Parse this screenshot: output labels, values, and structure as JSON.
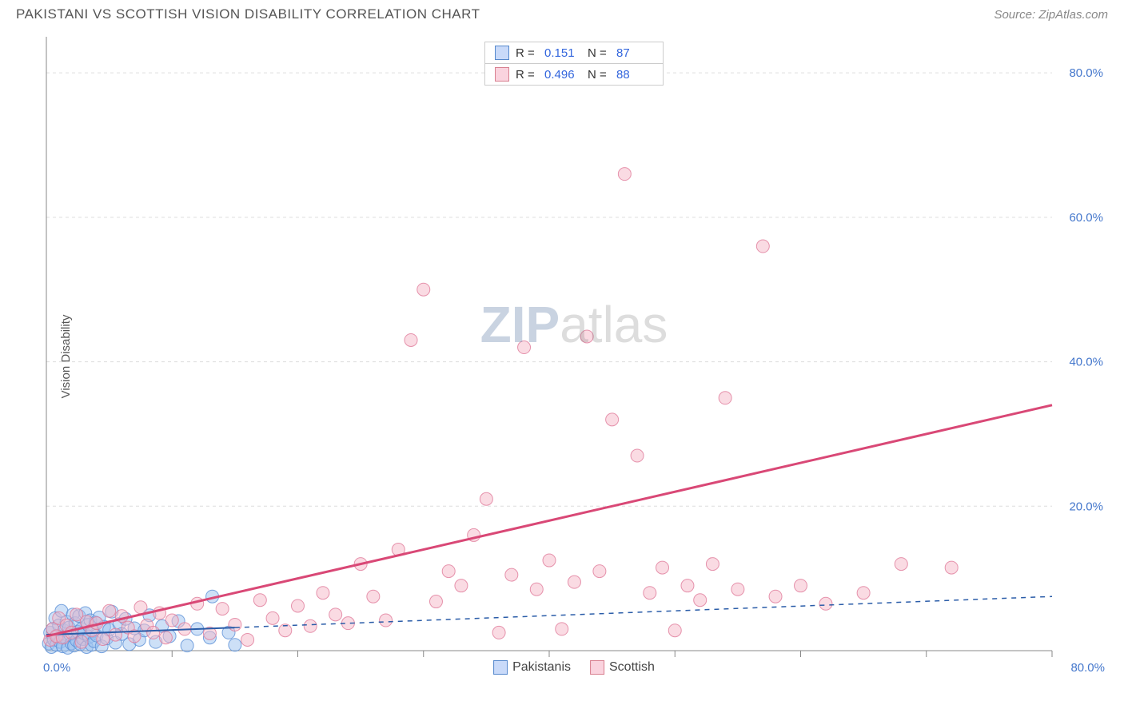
{
  "header": {
    "title": "PAKISTANI VS SCOTTISH VISION DISABILITY CORRELATION CHART",
    "source": "Source: ZipAtlas.com"
  },
  "chart": {
    "type": "scatter",
    "ylabel": "Vision Disability",
    "xlim": [
      0,
      80
    ],
    "ylim": [
      0,
      85
    ],
    "xtick_step": 10,
    "ytick_step": 20,
    "x_axis_label_min": "0.0%",
    "x_axis_label_max": "80.0%",
    "y_tick_labels": [
      "20.0%",
      "40.0%",
      "60.0%",
      "80.0%"
    ],
    "background_color": "#ffffff",
    "grid_color": "#dddddd",
    "axis_color": "#888888",
    "marker_radius": 8,
    "marker_opacity": 0.5,
    "watermark": {
      "part1": "ZIP",
      "part2": "atlas"
    },
    "series": [
      {
        "key": "pakistanis",
        "label": "Pakistanis",
        "color_fill": "#9cc2f0",
        "color_stroke": "#5a8fd6",
        "trend": {
          "x1": 0,
          "y1": 2.2,
          "x2": 80,
          "y2": 7.5,
          "solid_until_x": 15,
          "stroke": "#2a5ca8",
          "width": 2
        },
        "points": [
          [
            0.2,
            1.0
          ],
          [
            0.3,
            2.5
          ],
          [
            0.4,
            0.5
          ],
          [
            0.5,
            3.0
          ],
          [
            0.6,
            1.5
          ],
          [
            0.7,
            4.5
          ],
          [
            0.8,
            0.8
          ],
          [
            0.9,
            2.0
          ],
          [
            1.0,
            3.5
          ],
          [
            1.1,
            1.2
          ],
          [
            1.2,
            5.5
          ],
          [
            1.3,
            0.6
          ],
          [
            1.4,
            2.8
          ],
          [
            1.5,
            1.8
          ],
          [
            1.6,
            4.0
          ],
          [
            1.7,
            0.4
          ],
          [
            1.8,
            3.2
          ],
          [
            1.9,
            2.2
          ],
          [
            2.0,
            1.0
          ],
          [
            2.1,
            5.0
          ],
          [
            2.2,
            0.7
          ],
          [
            2.3,
            3.8
          ],
          [
            2.4,
            1.4
          ],
          [
            2.5,
            2.6
          ],
          [
            2.6,
            4.8
          ],
          [
            2.7,
            0.9
          ],
          [
            2.8,
            3.0
          ],
          [
            2.9,
            1.6
          ],
          [
            3.0,
            2.4
          ],
          [
            3.1,
            5.2
          ],
          [
            3.2,
            0.5
          ],
          [
            3.3,
            3.6
          ],
          [
            3.4,
            1.9
          ],
          [
            3.5,
            4.2
          ],
          [
            3.6,
            0.8
          ],
          [
            3.7,
            2.7
          ],
          [
            3.8,
            1.3
          ],
          [
            3.9,
            3.9
          ],
          [
            4.0,
            2.1
          ],
          [
            4.2,
            4.6
          ],
          [
            4.4,
            0.6
          ],
          [
            4.6,
            3.3
          ],
          [
            4.8,
            1.7
          ],
          [
            5.0,
            2.9
          ],
          [
            5.2,
            5.4
          ],
          [
            5.5,
            1.1
          ],
          [
            5.8,
            3.7
          ],
          [
            6.0,
            2.3
          ],
          [
            6.3,
            4.4
          ],
          [
            6.6,
            0.9
          ],
          [
            7.0,
            3.1
          ],
          [
            7.4,
            1.5
          ],
          [
            7.8,
            2.8
          ],
          [
            8.2,
            4.9
          ],
          [
            8.7,
            1.2
          ],
          [
            9.2,
            3.4
          ],
          [
            9.8,
            2.0
          ],
          [
            10.5,
            4.1
          ],
          [
            11.2,
            0.7
          ],
          [
            12.0,
            3.0
          ],
          [
            13.0,
            1.8
          ],
          [
            13.2,
            7.5
          ],
          [
            14.5,
            2.5
          ],
          [
            15.0,
            0.8
          ]
        ]
      },
      {
        "key": "scottish",
        "label": "Scottish",
        "color_fill": "#f5b8c8",
        "color_stroke": "#e07a9a",
        "trend": {
          "x1": 0,
          "y1": 2.0,
          "x2": 80,
          "y2": 34.0,
          "solid_until_x": 80,
          "stroke": "#d94876",
          "width": 3
        },
        "points": [
          [
            0.3,
            1.5
          ],
          [
            0.5,
            3.0
          ],
          [
            0.8,
            2.0
          ],
          [
            1.0,
            4.5
          ],
          [
            1.3,
            1.8
          ],
          [
            1.6,
            3.5
          ],
          [
            2.0,
            2.5
          ],
          [
            2.4,
            5.0
          ],
          [
            2.8,
            1.2
          ],
          [
            3.2,
            4.0
          ],
          [
            3.6,
            2.8
          ],
          [
            4.0,
            3.8
          ],
          [
            4.5,
            1.6
          ],
          [
            5.0,
            5.5
          ],
          [
            5.5,
            2.2
          ],
          [
            6.0,
            4.8
          ],
          [
            6.5,
            3.2
          ],
          [
            7.0,
            2.0
          ],
          [
            7.5,
            6.0
          ],
          [
            8.0,
            3.5
          ],
          [
            8.5,
            2.5
          ],
          [
            9.0,
            5.2
          ],
          [
            9.5,
            1.8
          ],
          [
            10.0,
            4.2
          ],
          [
            11.0,
            3.0
          ],
          [
            12.0,
            6.5
          ],
          [
            13.0,
            2.4
          ],
          [
            14.0,
            5.8
          ],
          [
            15.0,
            3.6
          ],
          [
            16.0,
            1.5
          ],
          [
            17.0,
            7.0
          ],
          [
            18.0,
            4.5
          ],
          [
            19.0,
            2.8
          ],
          [
            20.0,
            6.2
          ],
          [
            21.0,
            3.4
          ],
          [
            22.0,
            8.0
          ],
          [
            23.0,
            5.0
          ],
          [
            24.0,
            3.8
          ],
          [
            25.0,
            12.0
          ],
          [
            26.0,
            7.5
          ],
          [
            27.0,
            4.2
          ],
          [
            28.0,
            14.0
          ],
          [
            29.0,
            43.0
          ],
          [
            30.0,
            50.0
          ],
          [
            31.0,
            6.8
          ],
          [
            32.0,
            11.0
          ],
          [
            33.0,
            9.0
          ],
          [
            34.0,
            16.0
          ],
          [
            35.0,
            21.0
          ],
          [
            36.0,
            2.5
          ],
          [
            37.0,
            10.5
          ],
          [
            38.0,
            42.0
          ],
          [
            39.0,
            8.5
          ],
          [
            40.0,
            12.5
          ],
          [
            41.0,
            3.0
          ],
          [
            42.0,
            9.5
          ],
          [
            43.0,
            43.5
          ],
          [
            44.0,
            11.0
          ],
          [
            45.0,
            32.0
          ],
          [
            46.0,
            66.0
          ],
          [
            47.0,
            27.0
          ],
          [
            48.0,
            8.0
          ],
          [
            49.0,
            11.5
          ],
          [
            50.0,
            2.8
          ],
          [
            51.0,
            9.0
          ],
          [
            52.0,
            7.0
          ],
          [
            53.0,
            12.0
          ],
          [
            54.0,
            35.0
          ],
          [
            55.0,
            8.5
          ],
          [
            57.0,
            56.0
          ],
          [
            58.0,
            7.5
          ],
          [
            60.0,
            9.0
          ],
          [
            62.0,
            6.5
          ],
          [
            65.0,
            8.0
          ],
          [
            68.0,
            12.0
          ],
          [
            72.0,
            11.5
          ]
        ]
      }
    ],
    "stats": [
      {
        "swatch": "blue",
        "r_label": "R =",
        "r": "0.151",
        "n_label": "N =",
        "n": "87"
      },
      {
        "swatch": "pink",
        "r_label": "R =",
        "r": "0.496",
        "n_label": "N =",
        "n": "88"
      }
    ],
    "bottom_legend": [
      {
        "swatch": "blue",
        "label": "Pakistanis"
      },
      {
        "swatch": "pink",
        "label": "Scottish"
      }
    ]
  }
}
